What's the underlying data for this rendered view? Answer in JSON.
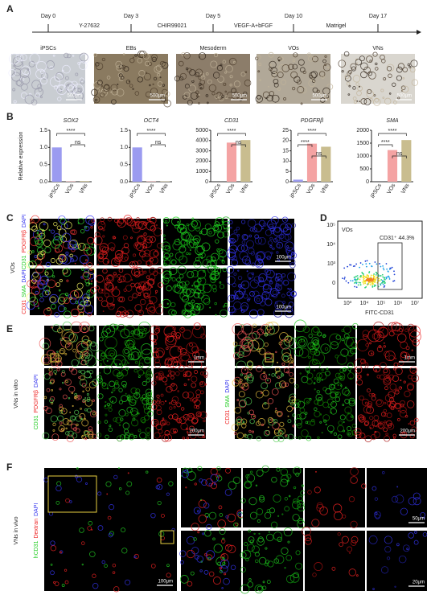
{
  "panel_labels": [
    "A",
    "B",
    "C",
    "D",
    "E",
    "F"
  ],
  "panel_a": {
    "days": [
      "Day 0",
      "Day 3",
      "Day 5",
      "Day 10",
      "Day 17"
    ],
    "treatments": [
      "Y-27632",
      "CHIR99021",
      "VEGF-A+bFGF",
      "Matrigel"
    ],
    "stages": [
      "iPSCs",
      "EBs",
      "Mesoderm",
      "VOs",
      "VNs"
    ],
    "scale_bars": [
      "500μm",
      "500μm",
      "500μm",
      "500μm",
      "500μm"
    ]
  },
  "chart_data": [
    {
      "type": "bar",
      "title": "SOX2",
      "y_label": "Relative expression",
      "categories": [
        "iPSCs",
        "VOs",
        "VNs"
      ],
      "colors": [
        "#9b9bf0",
        "#f4a3a3",
        "#c9bd8f"
      ],
      "values": [
        1.0,
        0.01,
        0.02
      ],
      "ylim": [
        0,
        1.5
      ],
      "yticks": [
        {
          "value": 0,
          "label": "0.0"
        },
        {
          "value": 0.5,
          "label": "0.5"
        },
        {
          "value": 1,
          "label": "1.0"
        },
        {
          "value": 1.5,
          "label": "1.5"
        }
      ],
      "annotations": [
        "****",
        "ns"
      ]
    },
    {
      "type": "bar",
      "title": "OCT4",
      "categories": [
        "iPSCs",
        "VOs",
        "VNs"
      ],
      "colors": [
        "#9b9bf0",
        "#f4a3a3",
        "#c9bd8f"
      ],
      "values": [
        1.0,
        0.01,
        0.01
      ],
      "ylim": [
        0,
        1.5
      ],
      "yticks": [
        {
          "value": 0,
          "label": "0.0"
        },
        {
          "value": 0.5,
          "label": "0.5"
        },
        {
          "value": 1,
          "label": "1.0"
        },
        {
          "value": 1.5,
          "label": "1.5"
        }
      ],
      "annotations": [
        "****",
        "ns"
      ]
    },
    {
      "type": "bar",
      "title": "CD31",
      "categories": [
        "iPSCs",
        "VOs",
        "VNs"
      ],
      "colors": [
        "#9b9bf0",
        "#f4a3a3",
        "#c9bd8f"
      ],
      "values": [
        1,
        3800,
        4050
      ],
      "ylim": [
        0,
        5000
      ],
      "yticks": [
        0,
        1000,
        2000,
        3000,
        4000,
        5000
      ],
      "annotations": [
        "****",
        "ns"
      ]
    },
    {
      "type": "bar",
      "title": "PDGFRβ",
      "categories": [
        "iPSCs",
        "VOs",
        "VNs"
      ],
      "colors": [
        "#9b9bf0",
        "#f4a3a3",
        "#c9bd8f"
      ],
      "values": [
        1,
        18.5,
        17
      ],
      "ylim": [
        0,
        25
      ],
      "yticks": [
        0,
        5,
        10,
        15,
        20,
        25
      ],
      "annotations": [
        "****",
        "****",
        "ns"
      ]
    },
    {
      "type": "bar",
      "title": "SMA",
      "categories": [
        "iPSCs",
        "VOs",
        "VNs"
      ],
      "colors": [
        "#9b9bf0",
        "#f4a3a3",
        "#c9bd8f"
      ],
      "values": [
        1,
        1230,
        1620
      ],
      "ylim": [
        0,
        2000
      ],
      "yticks": [
        0,
        500,
        1000,
        1500,
        2000
      ],
      "annotations": [
        "****",
        "****",
        "ns"
      ]
    }
  ],
  "panel_c": {
    "group_label": "VOs",
    "rows": [
      [
        "CD31",
        "PDGFRβ",
        "DAPI"
      ],
      [
        "CD31",
        "SMA",
        "DAPI"
      ]
    ],
    "scale_bars": [
      "100μm",
      "100μm"
    ]
  },
  "panel_d": {
    "title": "VOs",
    "gate_label": "CD31⁺ 44.3%",
    "x_label": "FITC-CD31",
    "y_ticks": [
      "0",
      "10³",
      "10⁴",
      "10⁵"
    ],
    "x_ticks": [
      "10³",
      "10⁴",
      "10⁵",
      "10⁶",
      "10⁷"
    ]
  },
  "panel_e": {
    "group_label": "VNs in vitro",
    "left_markers": [
      "CD31",
      "PDGFRβ",
      "DAPI"
    ],
    "right_markers": [
      "CD31",
      "SMA",
      "DAPI"
    ],
    "scale_bars": [
      "1mm",
      "200μm",
      "1mm",
      "200μm"
    ]
  },
  "panel_f": {
    "group_label": "VNs in vivo",
    "markers": [
      "hCD31",
      "Dextran",
      "DAPI"
    ],
    "scale_bars": [
      "100μm",
      "50μm",
      "20μm"
    ]
  }
}
